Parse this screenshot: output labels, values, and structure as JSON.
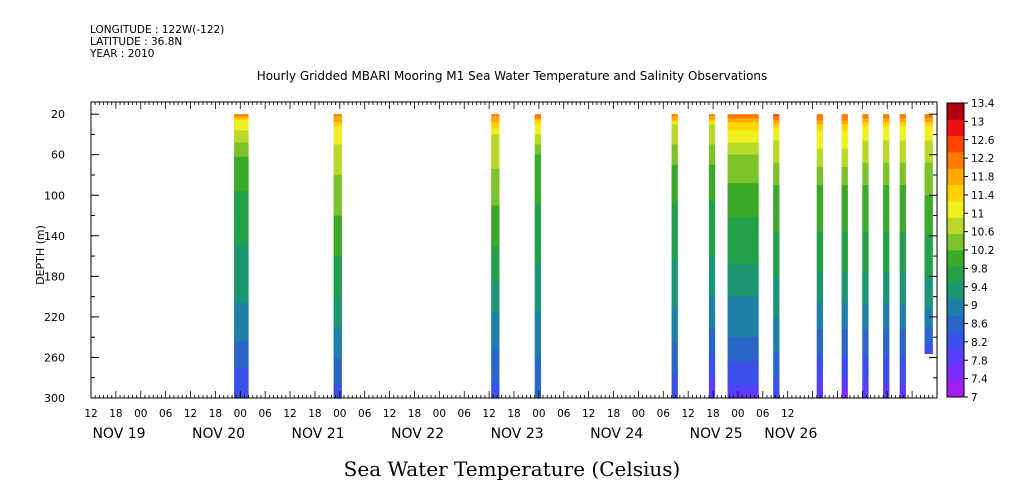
{
  "header": {
    "longitude": "LONGITUDE : 122W(-122)",
    "latitude": "LATITUDE : 36.8N",
    "year": "YEAR : 2010"
  },
  "chart_data": {
    "type": "heatmap",
    "title": "Hourly Gridded MBARI Mooring M1 Sea Water Temperature and Salinity Observations",
    "subtitle": "Sea Water Temperature (Celsius)",
    "ylabel": "DEPTH (m)",
    "xlabel": "",
    "xlim_hours": [
      0,
      204
    ],
    "ylim": [
      300,
      8
    ],
    "y_ticks": [
      20,
      60,
      100,
      140,
      180,
      220,
      260,
      300
    ],
    "x_hour_ticks": [
      "12",
      "18",
      "00",
      "06",
      "12",
      "18",
      "00",
      "06",
      "12",
      "18",
      "00",
      "06",
      "12",
      "18",
      "00",
      "06",
      "12",
      "18",
      "00",
      "06",
      "12",
      "18",
      "00",
      "06",
      "12",
      "18",
      "00",
      "06",
      "12"
    ],
    "x_day_labels": [
      {
        "label": "NOV 19",
        "hour": 0
      },
      {
        "label": "NOV 20",
        "hour": 24
      },
      {
        "label": "NOV 21",
        "hour": 48
      },
      {
        "label": "NOV 22",
        "hour": 72
      },
      {
        "label": "NOV 23",
        "hour": 96
      },
      {
        "label": "NOV 24",
        "hour": 120
      },
      {
        "label": "NOV 25",
        "hour": 144
      },
      {
        "label": "NOV 26",
        "hour": 162
      }
    ],
    "colorbar": {
      "levels": [
        7,
        7.4,
        7.8,
        8.2,
        8.6,
        9,
        9.4,
        9.8,
        10.2,
        10.6,
        11,
        11.4,
        11.8,
        12.2,
        12.6,
        13,
        13.4
      ],
      "colors": [
        "#a020f0",
        "#7b2cff",
        "#5a3cff",
        "#3a50e8",
        "#2a66c8",
        "#1f7fa8",
        "#1a9673",
        "#22a04a",
        "#3aaa2a",
        "#7cc22a",
        "#b8d82a",
        "#f0f020",
        "#ffd400",
        "#ffa800",
        "#ff7a00",
        "#ff4400",
        "#ee1010",
        "#b00010"
      ]
    },
    "columns": [
      {
        "start_hour": 34.5,
        "end_hour": 38.0,
        "profile": [
          [
            20,
            12.6
          ],
          [
            25,
            11.4
          ],
          [
            40,
            10.8
          ],
          [
            70,
            10.0
          ],
          [
            120,
            9.6
          ],
          [
            180,
            9.2
          ],
          [
            230,
            8.8
          ],
          [
            270,
            8.2
          ],
          [
            300,
            7.8
          ]
        ]
      },
      {
        "start_hour": 58.5,
        "end_hour": 60.5,
        "profile": [
          [
            20,
            12.4
          ],
          [
            35,
            11.2
          ],
          [
            80,
            10.6
          ],
          [
            140,
            10.0
          ],
          [
            200,
            9.4
          ],
          [
            260,
            8.6
          ],
          [
            300,
            8.0
          ]
        ]
      },
      {
        "start_hour": 96.5,
        "end_hour": 98.5,
        "profile": [
          [
            20,
            12.4
          ],
          [
            40,
            11.0
          ],
          [
            90,
            10.4
          ],
          [
            150,
            9.8
          ],
          [
            200,
            9.2
          ],
          [
            250,
            8.6
          ],
          [
            300,
            8.0
          ]
        ]
      },
      {
        "start_hour": 107.0,
        "end_hour": 108.5,
        "profile": [
          [
            20,
            12.6
          ],
          [
            30,
            11.4
          ],
          [
            60,
            10.2
          ],
          [
            120,
            9.7
          ],
          [
            180,
            9.3
          ],
          [
            240,
            8.8
          ],
          [
            300,
            8.2
          ]
        ]
      },
      {
        "start_hour": 140.0,
        "end_hour": 141.5,
        "profile": [
          [
            20,
            12.6
          ],
          [
            30,
            11.0
          ],
          [
            80,
            10.0
          ],
          [
            150,
            9.5
          ],
          [
            210,
            9.0
          ],
          [
            260,
            8.4
          ],
          [
            300,
            7.9
          ]
        ]
      },
      {
        "start_hour": 149.0,
        "end_hour": 150.5,
        "profile": [
          [
            20,
            12.6
          ],
          [
            30,
            11.0
          ],
          [
            80,
            10.0
          ],
          [
            160,
            9.4
          ],
          [
            220,
            8.8
          ],
          [
            270,
            8.0
          ],
          [
            300,
            7.4
          ]
        ]
      },
      {
        "start_hour": 153.5,
        "end_hour": 161.0,
        "profile": [
          [
            20,
            12.6
          ],
          [
            30,
            11.6
          ],
          [
            60,
            10.6
          ],
          [
            110,
            9.9
          ],
          [
            160,
            9.5
          ],
          [
            200,
            9.0
          ],
          [
            240,
            8.6
          ],
          [
            275,
            8.0
          ],
          [
            300,
            7.6
          ]
        ]
      },
      {
        "start_hour": 164.5,
        "end_hour": 166.0,
        "profile": [
          [
            20,
            12.8
          ],
          [
            35,
            11.2
          ],
          [
            90,
            10.2
          ],
          [
            160,
            9.6
          ],
          [
            220,
            9.0
          ],
          [
            270,
            8.4
          ],
          [
            300,
            7.8
          ]
        ]
      },
      {
        "start_hour": 175.0,
        "end_hour": 176.5,
        "profile": [
          [
            20,
            12.6
          ],
          [
            35,
            11.4
          ],
          [
            90,
            10.2
          ],
          [
            160,
            9.6
          ],
          [
            220,
            8.8
          ],
          [
            270,
            8.0
          ],
          [
            300,
            7.4
          ]
        ]
      },
      {
        "start_hour": 181.0,
        "end_hour": 182.5,
        "profile": [
          [
            20,
            12.6
          ],
          [
            35,
            11.4
          ],
          [
            90,
            10.2
          ],
          [
            160,
            9.6
          ],
          [
            220,
            8.8
          ],
          [
            270,
            8.0
          ],
          [
            300,
            7.2
          ]
        ]
      },
      {
        "start_hour": 186.0,
        "end_hour": 187.5,
        "profile": [
          [
            20,
            12.6
          ],
          [
            35,
            11.2
          ],
          [
            90,
            10.2
          ],
          [
            160,
            9.6
          ],
          [
            220,
            8.8
          ],
          [
            270,
            8.0
          ],
          [
            300,
            7.4
          ]
        ]
      },
      {
        "start_hour": 191.0,
        "end_hour": 192.5,
        "profile": [
          [
            20,
            12.6
          ],
          [
            35,
            11.2
          ],
          [
            90,
            10.2
          ],
          [
            160,
            9.6
          ],
          [
            220,
            8.8
          ],
          [
            270,
            8.0
          ],
          [
            300,
            7.6
          ]
        ]
      },
      {
        "start_hour": 195.0,
        "end_hour": 196.5,
        "profile": [
          [
            20,
            12.6
          ],
          [
            35,
            11.2
          ],
          [
            90,
            10.2
          ],
          [
            160,
            9.6
          ],
          [
            220,
            8.8
          ],
          [
            270,
            8.0
          ],
          [
            300,
            7.6
          ]
        ]
      },
      {
        "start_hour": 201.0,
        "end_hour": 203.0,
        "profile": [
          [
            20,
            12.6
          ],
          [
            35,
            11.2
          ],
          [
            80,
            10.4
          ],
          [
            140,
            9.8
          ],
          [
            200,
            9.2
          ],
          [
            240,
            8.4
          ],
          [
            255,
            7.8
          ]
        ]
      }
    ]
  }
}
